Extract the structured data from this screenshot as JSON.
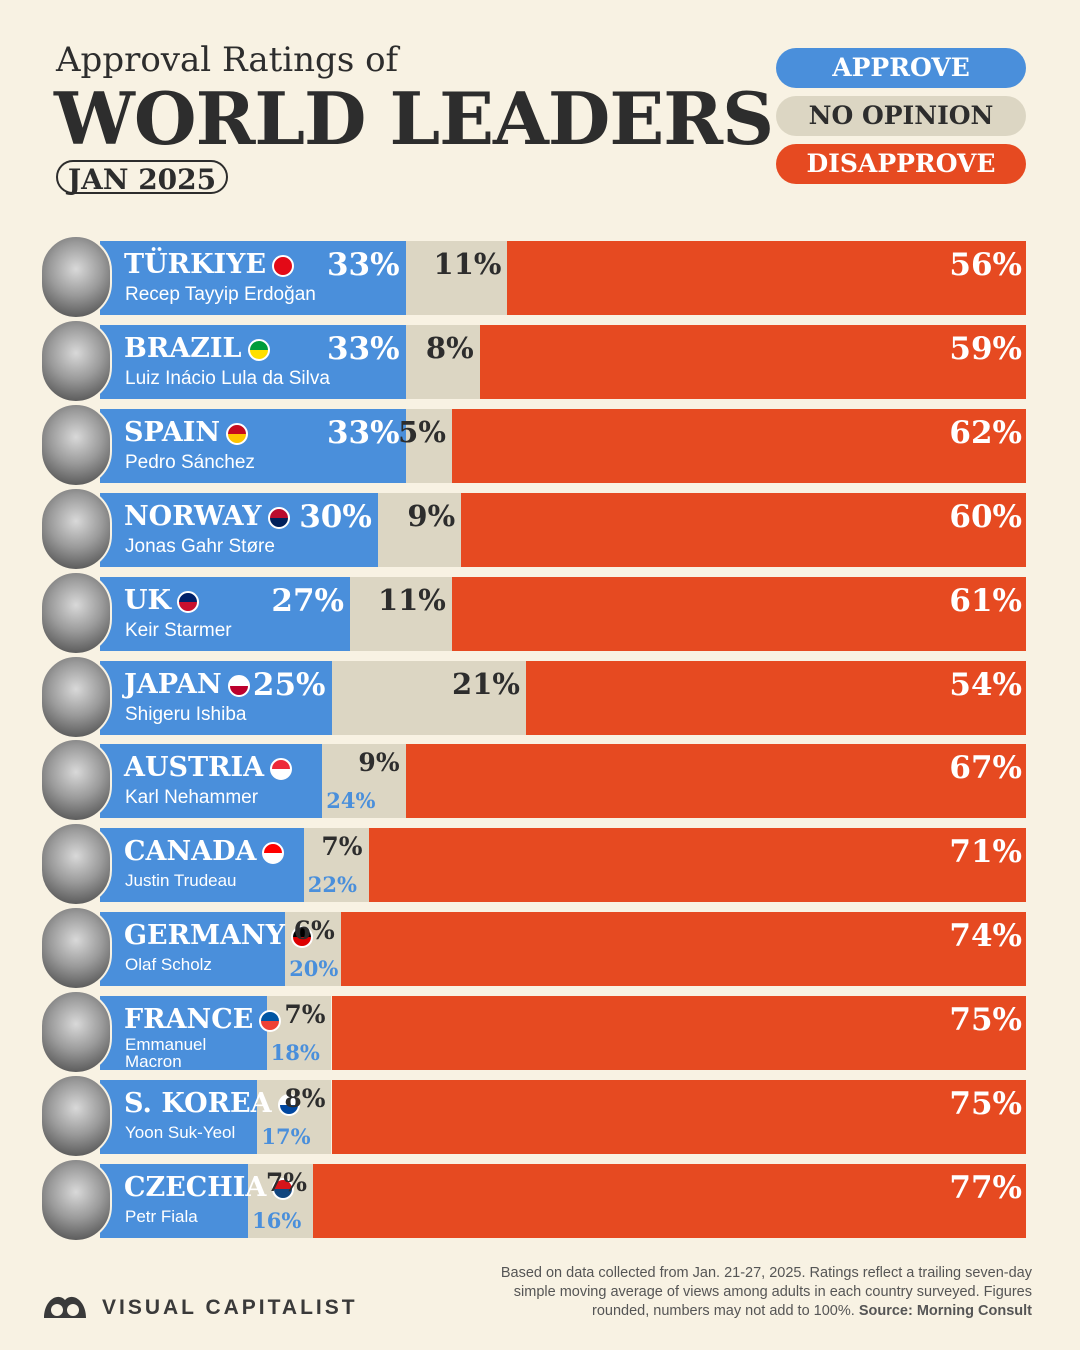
{
  "header": {
    "subtitle": "Approval Ratings of",
    "title": "WORLD LEADERS",
    "date": "JAN 2025"
  },
  "legend": {
    "approve": "APPROVE",
    "no_opinion": "NO OPINION",
    "disapprove": "DISAPPROVE"
  },
  "colors": {
    "approve": "#4a8fdb",
    "no_opinion": "#dcd6c3",
    "disapprove": "#e64a21",
    "background": "#f8f2e3"
  },
  "chart_data": {
    "type": "bar",
    "stacked": true,
    "orientation": "horizontal",
    "xlim": [
      0,
      100
    ],
    "categories": [
      "TÜRKIYE",
      "BRAZIL",
      "SPAIN",
      "NORWAY",
      "UK",
      "JAPAN",
      "AUSTRIA",
      "CANADA",
      "GERMANY",
      "FRANCE",
      "S. KOREA",
      "CZECHIA"
    ],
    "leaders": [
      "Recep Tayyip Erdoğan",
      "Luiz Inácio Lula da Silva",
      "Pedro Sánchez",
      "Jonas Gahr Støre",
      "Keir Starmer",
      "Shigeru Ishiba",
      "Karl Nehammer",
      "Justin Trudeau",
      "Olaf Scholz",
      "Emmanuel Macron",
      "Yoon Suk-Yeol",
      "Petr Fiala"
    ],
    "series": [
      {
        "name": "APPROVE",
        "values": [
          33,
          33,
          33,
          30,
          27,
          25,
          24,
          22,
          20,
          18,
          17,
          16
        ]
      },
      {
        "name": "NO OPINION",
        "values": [
          11,
          8,
          5,
          9,
          11,
          21,
          9,
          7,
          6,
          7,
          8,
          7
        ]
      },
      {
        "name": "DISAPPROVE",
        "values": [
          56,
          59,
          62,
          60,
          61,
          54,
          67,
          71,
          74,
          75,
          75,
          77
        ]
      }
    ],
    "labels": {
      "approve": [
        "33%",
        "33%",
        "33%",
        "30%",
        "27%",
        "25%",
        "24%",
        "22%",
        "20%",
        "18%",
        "17%",
        "16%"
      ],
      "no_opinion": [
        "11%",
        "8%",
        "5%",
        "9%",
        "11%",
        "21%",
        "9%",
        "7%",
        "6%",
        "7%",
        "8%",
        "7%"
      ],
      "disapprove": [
        "56%",
        "59%",
        "62%",
        "60%",
        "61%",
        "54%",
        "67%",
        "71%",
        "74%",
        "75%",
        "75%",
        "77%"
      ]
    },
    "flags": [
      [
        "#e30a17",
        "#e30a17"
      ],
      [
        "#009c3b",
        "#ffdf00"
      ],
      [
        "#c60b1e",
        "#ffc400"
      ],
      [
        "#ba0c2f",
        "#00205b"
      ],
      [
        "#012169",
        "#c8102e"
      ],
      [
        "#ffffff",
        "#bc002d"
      ],
      [
        "#ed2939",
        "#ffffff"
      ],
      [
        "#ff0000",
        "#ffffff"
      ],
      [
        "#000000",
        "#dd0000"
      ],
      [
        "#0055a4",
        "#ef4135"
      ],
      [
        "#ffffff",
        "#0047a0"
      ],
      [
        "#d7141a",
        "#11457e"
      ]
    ]
  },
  "footer": {
    "note": "Based on data collected from Jan. 21-27, 2025. Ratings reflect a trailing seven-day simple moving average of views among adults in each country surveyed. Figures rounded, numbers may not add to 100%.",
    "source": "Source: Morning Consult",
    "brand": "VISUAL CAPITALIST",
    "brand_icon": "visual-capitalist-logo-icon"
  }
}
